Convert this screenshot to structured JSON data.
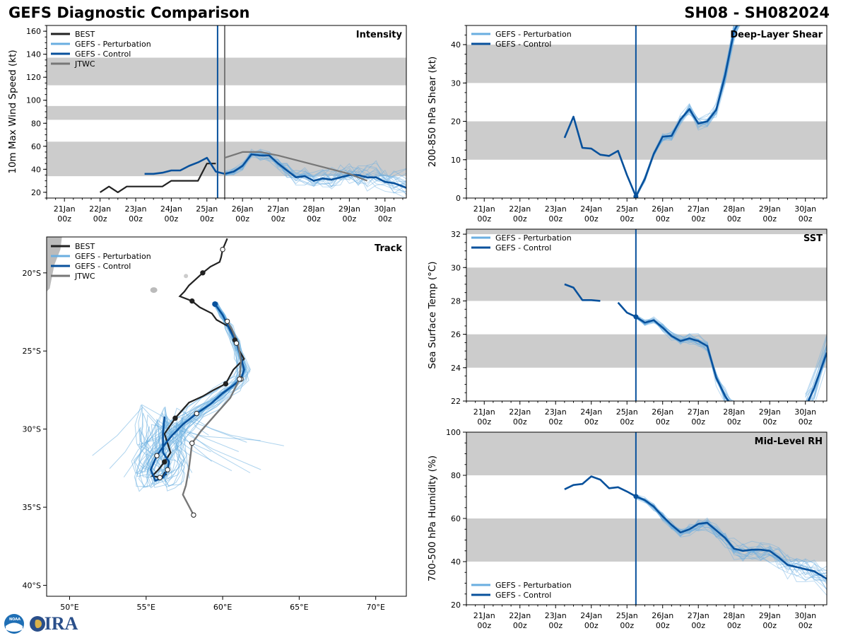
{
  "header": {
    "left_title": "GEFS Diagnostic Comparison",
    "right_title": "SH08 - SH082024"
  },
  "logo": {
    "text": "CIRA",
    "badge": "NOAA"
  },
  "colors": {
    "best": "#222222",
    "perturbation": "#6aaee0",
    "control": "#08519c",
    "jtwc": "#777777",
    "band": "#cccccc"
  },
  "time_axis": {
    "tick_labels": [
      [
        "21Jan",
        "00z"
      ],
      [
        "22Jan",
        "00z"
      ],
      [
        "23Jan",
        "00z"
      ],
      [
        "24Jan",
        "00z"
      ],
      [
        "25Jan",
        "00z"
      ],
      [
        "26Jan",
        "00z"
      ],
      [
        "27Jan",
        "00z"
      ],
      [
        "28Jan",
        "00z"
      ],
      [
        "29Jan",
        "00z"
      ],
      [
        "30Jan",
        "00z"
      ]
    ],
    "ticks_day": [
      1,
      2,
      3,
      4,
      5,
      6,
      7,
      8,
      9,
      10
    ]
  },
  "chart_data": [
    {
      "id": "intensity",
      "type": "line",
      "panel_label": "Intensity",
      "ylabel": "10m Max Wind Speed (kt)",
      "xlim": [
        0.5,
        10.6
      ],
      "ylim": [
        15,
        165
      ],
      "yticks": [
        20,
        40,
        60,
        80,
        100,
        120,
        140,
        160
      ],
      "bands": [
        [
          34,
          64
        ],
        [
          83,
          95
        ],
        [
          113,
          137
        ]
      ],
      "init_day": 5.3,
      "jtwc_day": 5.5,
      "legend": [
        "BEST",
        "GEFS - Perturbation",
        "GEFS - Control",
        "JTWC"
      ],
      "series": [
        {
          "name": "BEST",
          "x": [
            2,
            2.25,
            2.5,
            2.75,
            3,
            3.25,
            3.5,
            3.75,
            4,
            4.25,
            4.5,
            4.75,
            5,
            5.25,
            5.35,
            5.6
          ],
          "y": [
            20,
            25,
            20,
            25,
            25,
            25,
            25,
            25,
            30,
            30,
            30,
            30,
            45,
            45,
            null,
            45
          ]
        },
        {
          "name": "GEFS - Control",
          "x": [
            3.25,
            3.5,
            3.75,
            4,
            4.25,
            4.5,
            4.75,
            5,
            5.25,
            5.5,
            5.75,
            6,
            6.25,
            6.5,
            6.75,
            7,
            7.25,
            7.5,
            7.75,
            8,
            8.25,
            8.5,
            8.75,
            9,
            9.25,
            9.5,
            9.75,
            10,
            10.25,
            10.6
          ],
          "y": [
            36,
            36,
            37,
            39,
            39,
            43,
            46,
            50,
            38,
            36,
            38,
            43,
            53,
            52,
            52,
            45,
            39,
            33,
            34,
            30,
            32,
            31,
            33,
            35,
            35,
            33,
            33,
            29,
            28,
            24
          ]
        },
        {
          "name": "JTWC",
          "x": [
            5.5,
            6,
            6.5,
            7,
            7.5,
            8,
            8.5,
            9,
            9.5
          ],
          "y": [
            50,
            55,
            55,
            52,
            48,
            44,
            40,
            36,
            30
          ]
        }
      ]
    },
    {
      "id": "shear",
      "type": "line",
      "panel_label": "Deep-Layer Shear",
      "ylabel": "200-850 hPa Shear (kt)",
      "xlim": [
        0.5,
        10.6
      ],
      "ylim": [
        0,
        45
      ],
      "yticks": [
        0,
        10,
        20,
        30,
        40
      ],
      "bands": [
        [
          10,
          20
        ],
        [
          30,
          40
        ]
      ],
      "init_day": 5.25,
      "legend": [
        "GEFS - Perturbation",
        "GEFS - Control"
      ],
      "series": [
        {
          "name": "GEFS - Control",
          "x": [
            3.25,
            3.5,
            3.75,
            4,
            4.25,
            4.5,
            4.75,
            5,
            5.25,
            5.5,
            5.75,
            6,
            6.25,
            6.5,
            6.75,
            7,
            7.25,
            7.5,
            7.75,
            8,
            8.25
          ],
          "y": [
            15.7,
            21.2,
            13.1,
            12.9,
            11.3,
            11,
            12.3,
            6,
            0.4,
            5,
            11.5,
            16,
            16.2,
            20.5,
            23.2,
            19.4,
            20,
            23,
            32,
            43.5,
            48
          ]
        }
      ]
    },
    {
      "id": "sst",
      "type": "line",
      "panel_label": "SST",
      "ylabel": "Sea Surface Temp (°C)",
      "xlim": [
        0.5,
        10.6
      ],
      "ylim": [
        22,
        32.3
      ],
      "yticks": [
        22,
        24,
        26,
        28,
        30,
        32
      ],
      "bands": [
        [
          24,
          26
        ],
        [
          28,
          30
        ],
        [
          32,
          33
        ]
      ],
      "init_day": 5.25,
      "legend": [
        "GEFS - Perturbation",
        "GEFS - Control"
      ],
      "series": [
        {
          "name": "GEFS - Control",
          "x": [
            3.25,
            3.5,
            3.75,
            4,
            4.25
          ],
          "y": [
            29,
            28.8,
            28.05,
            28.05,
            28
          ]
        },
        {
          "name": "GEFS - Control 2",
          "x": [
            4.75,
            5,
            5.25,
            5.5,
            5.75,
            6,
            6.25,
            6.5,
            6.75,
            7,
            7.25,
            7.5,
            7.75,
            8
          ],
          "y": [
            27.9,
            27.3,
            27.05,
            26.7,
            26.85,
            26.4,
            25.9,
            25.6,
            25.75,
            25.6,
            25.3,
            23.4,
            22.3,
            21.5
          ]
        },
        {
          "name": "GEFS - Control 3",
          "x": [
            10,
            10.25,
            10.6
          ],
          "y": [
            21.6,
            22.8,
            24.9
          ]
        }
      ]
    },
    {
      "id": "rh",
      "type": "line",
      "panel_label": "Mid-Level RH",
      "ylabel": "700-500 hPa Humidity (%)",
      "xlim": [
        0.5,
        10.6
      ],
      "ylim": [
        20,
        100
      ],
      "yticks": [
        20,
        40,
        60,
        80,
        100
      ],
      "bands": [
        [
          40,
          60
        ],
        [
          80,
          100
        ]
      ],
      "init_day": 5.25,
      "legend": [
        "GEFS - Perturbation",
        "GEFS - Control"
      ],
      "series": [
        {
          "name": "GEFS - Control",
          "x": [
            3.25,
            3.5,
            3.75,
            4,
            4.25,
            4.5,
            4.75,
            5,
            5.25,
            5.5,
            5.75,
            6,
            6.25,
            6.5,
            6.75,
            7,
            7.25,
            7.5,
            7.75,
            8,
            8.25,
            8.5,
            8.75,
            9,
            9.25,
            9.5,
            9.75,
            10,
            10.25,
            10.6
          ],
          "y": [
            73.5,
            75.5,
            76,
            79.5,
            78,
            74,
            74.5,
            72.5,
            70.2,
            68.5,
            65.5,
            61,
            57,
            53.5,
            55,
            57.5,
            58,
            54.5,
            51,
            46,
            45,
            45.5,
            45.5,
            45,
            42,
            38.5,
            37.5,
            36.5,
            35.5,
            32
          ]
        }
      ]
    },
    {
      "id": "track",
      "type": "line",
      "panel_label": "Track",
      "xlim": [
        48.5,
        72
      ],
      "ylim": [
        -40.7,
        -17.7
      ],
      "xticks": [
        50,
        55,
        60,
        65,
        70
      ],
      "xtick_labels": [
        "50°E",
        "55°E",
        "60°E",
        "65°E",
        "70°E"
      ],
      "yticks": [
        -20,
        -25,
        -30,
        -35,
        -40
      ],
      "ytick_labels": [
        "20°S",
        "25°S",
        "30°S",
        "35°S",
        "40°S"
      ],
      "legend": [
        "BEST",
        "GEFS - Perturbation",
        "GEFS - Control",
        "JTWC"
      ],
      "series": [
        {
          "name": "BEST",
          "lon": [
            60.3,
            60,
            59.9,
            59.8,
            59.2,
            58.7,
            57.8,
            57.5,
            57.2,
            58,
            58.5,
            59.3,
            59.6,
            60.5,
            60.8,
            61.1,
            61.4,
            60.7,
            60.2,
            59.4,
            58.7,
            57.8,
            56.9,
            56.2,
            56.6,
            56.2,
            55.8,
            55.4,
            55.9,
            56.3,
            56.2,
            56.1
          ],
          "lat": [
            -17.8,
            -18.5,
            -19,
            -19.3,
            -19.6,
            -20,
            -20.8,
            -21.2,
            -21.5,
            -21.8,
            -22.2,
            -22.6,
            -23,
            -23.5,
            -24.3,
            -25,
            -25.5,
            -26.2,
            -27.1,
            -27.5,
            -27.9,
            -28.3,
            -29.3,
            -30.3,
            -31.5,
            -32.1,
            -32.6,
            -33,
            -33.1,
            -32.9,
            -32.8,
            -33
          ]
        },
        {
          "name": "GEFS - Control",
          "lon": [
            59.5,
            60,
            60.4,
            60.9,
            61.2,
            61.4,
            61.2,
            60.7,
            60,
            59.2,
            58.3,
            57.4,
            56.7,
            56.2,
            55.7,
            55.3,
            55.6,
            56.1,
            56.4,
            56.5,
            56.3,
            56.1,
            56.1,
            56.2
          ],
          "lat": [
            -22,
            -22.7,
            -23.5,
            -24.5,
            -25.4,
            -26.2,
            -26.8,
            -27.2,
            -27.7,
            -28.4,
            -29,
            -29.7,
            -30.4,
            -31,
            -31.7,
            -32.6,
            -33.3,
            -33.1,
            -32.6,
            -32.1,
            -31.8,
            -31.5,
            -30.3,
            -29.2
          ]
        },
        {
          "name": "JTWC",
          "lon": [
            60.3,
            60.6,
            61,
            61.2,
            61.1,
            60.5,
            59.5,
            58.6,
            58,
            57.8,
            57.6,
            57.4,
            58.1
          ],
          "lat": [
            -23.1,
            -23.6,
            -24.5,
            -25.6,
            -26.8,
            -28,
            -29.1,
            -30.1,
            -30.9,
            -32.5,
            -33.6,
            -34.2,
            -35.5
          ]
        }
      ]
    }
  ]
}
